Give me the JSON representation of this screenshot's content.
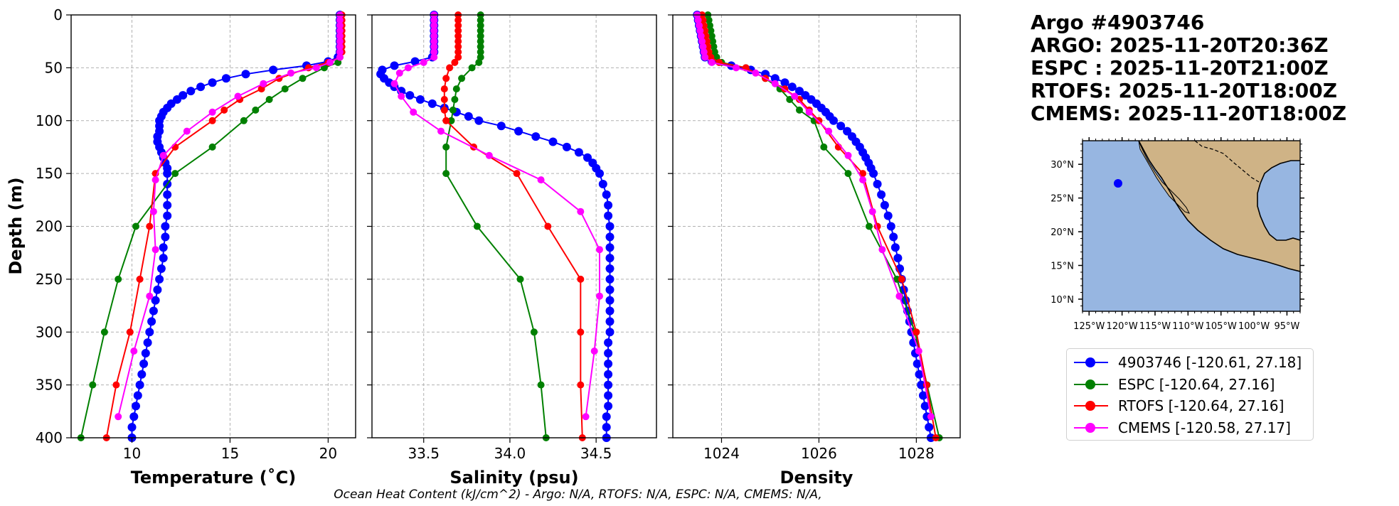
{
  "title_lines": [
    "Argo #4903746",
    "ARGO: 2025-11-20T20:36Z",
    "ESPC : 2025-11-20T21:00Z",
    "RTOFS: 2025-11-20T18:00Z",
    "CMEMS: 2025-11-20T18:00Z"
  ],
  "footnote": "Ocean Heat Content (kJ/cm^2) - Argo: N/A,  RTOFS: N/A,  ESPC: N/A,  CMEMS: N/A,",
  "legend": [
    {
      "label": "4903746 [-120.61, 27.18]",
      "color": "#0000ff"
    },
    {
      "label": "ESPC [-120.64, 27.16]",
      "color": "#008000"
    },
    {
      "label": "RTOFS [-120.64, 27.16]",
      "color": "#ff0000"
    },
    {
      "label": "CMEMS [-120.58, 27.17]",
      "color": "#ff00ff"
    }
  ],
  "chart_data": [
    {
      "type": "line",
      "name": "temperature",
      "xlabel": "Temperature (˚C)",
      "ylabel": "Depth (m)",
      "xlim": [
        6.9,
        21.4
      ],
      "ylim": [
        400,
        0
      ],
      "xticks": [
        10,
        15,
        20
      ],
      "xtick_labels": [
        "10",
        "15",
        "20"
      ],
      "yticks": [
        0,
        50,
        100,
        150,
        200,
        250,
        300,
        350,
        400
      ],
      "ytick_labels": [
        "0",
        "50",
        "100",
        "150",
        "200",
        "250",
        "300",
        "350",
        "400"
      ],
      "grid": true,
      "series": [
        {
          "name": "4903746",
          "color": "#0000ff",
          "markersize": 6,
          "depth": [
            0,
            5,
            10,
            15,
            20,
            25,
            30,
            35,
            40,
            44,
            48,
            52,
            56,
            60,
            64,
            68,
            72,
            76,
            80,
            84,
            88,
            92,
            96,
            100,
            105,
            110,
            115,
            120,
            125,
            130,
            135,
            140,
            145,
            150,
            160,
            170,
            180,
            190,
            200,
            210,
            220,
            230,
            240,
            250,
            260,
            270,
            280,
            290,
            300,
            310,
            320,
            330,
            340,
            350,
            360,
            370,
            380,
            390,
            400
          ],
          "values": [
            20.6,
            20.6,
            20.6,
            20.6,
            20.6,
            20.6,
            20.6,
            20.6,
            20.5,
            20.0,
            18.9,
            17.2,
            15.8,
            14.8,
            14.1,
            13.5,
            13.0,
            12.6,
            12.3,
            12.0,
            11.8,
            11.6,
            11.5,
            11.4,
            11.4,
            11.4,
            11.3,
            11.3,
            11.4,
            11.5,
            11.6,
            11.7,
            11.8,
            11.8,
            11.8,
            11.8,
            11.8,
            11.8,
            11.7,
            11.7,
            11.6,
            11.6,
            11.5,
            11.4,
            11.3,
            11.2,
            11.1,
            11.0,
            10.9,
            10.8,
            10.7,
            10.6,
            10.5,
            10.4,
            10.3,
            10.2,
            10.1,
            10.0,
            10.0
          ]
        },
        {
          "name": "ESPC",
          "color": "#008000",
          "markersize": 5,
          "depth": [
            0,
            5,
            10,
            15,
            20,
            25,
            30,
            35,
            40,
            45,
            50,
            60,
            70,
            80,
            90,
            100,
            125,
            150,
            200,
            250,
            300,
            350,
            400
          ],
          "values": [
            20.6,
            20.6,
            20.6,
            20.6,
            20.6,
            20.6,
            20.6,
            20.6,
            20.6,
            20.5,
            19.8,
            18.7,
            17.8,
            17.0,
            16.3,
            15.7,
            14.1,
            12.2,
            10.2,
            9.3,
            8.6,
            8.0,
            7.4
          ]
        },
        {
          "name": "RTOFS",
          "color": "#ff0000",
          "markersize": 5,
          "depth": [
            0,
            5,
            10,
            15,
            20,
            25,
            30,
            35,
            40,
            45,
            50,
            60,
            70,
            80,
            90,
            100,
            125,
            150,
            200,
            250,
            300,
            350,
            400
          ],
          "values": [
            20.7,
            20.7,
            20.7,
            20.7,
            20.7,
            20.7,
            20.7,
            20.7,
            20.6,
            20.0,
            19.0,
            17.5,
            16.6,
            15.5,
            14.7,
            14.1,
            12.2,
            11.2,
            10.9,
            10.4,
            9.9,
            9.2,
            8.7
          ]
        },
        {
          "name": "CMEMS",
          "color": "#ff00ff",
          "markersize": 5,
          "depth": [
            0,
            5,
            10,
            15,
            20,
            25,
            30,
            35,
            40,
            45,
            50,
            55,
            65,
            77,
            92,
            110,
            133,
            156,
            186,
            222,
            266,
            318,
            380
          ],
          "values": [
            20.6,
            20.6,
            20.6,
            20.6,
            20.6,
            20.6,
            20.6,
            20.6,
            20.6,
            20.1,
            19.4,
            18.1,
            16.7,
            15.4,
            14.1,
            12.8,
            11.6,
            11.2,
            11.1,
            11.2,
            10.9,
            10.1,
            9.3
          ]
        }
      ]
    },
    {
      "type": "line",
      "name": "salinity",
      "xlabel": "Salinity (psu)",
      "xlim": [
        33.2,
        34.85
      ],
      "ylim": [
        400,
        0
      ],
      "xticks": [
        33.5,
        34.0,
        34.5
      ],
      "xtick_labels": [
        "33.5",
        "34.0",
        "34.5"
      ],
      "grid": true,
      "series": [
        {
          "name": "4903746",
          "color": "#0000ff",
          "markersize": 6,
          "depth": [
            0,
            5,
            10,
            15,
            20,
            25,
            30,
            35,
            40,
            44,
            48,
            52,
            56,
            60,
            64,
            68,
            72,
            76,
            80,
            84,
            88,
            92,
            96,
            100,
            105,
            110,
            115,
            120,
            125,
            130,
            135,
            140,
            145,
            150,
            160,
            170,
            180,
            190,
            200,
            210,
            220,
            230,
            240,
            250,
            260,
            270,
            280,
            290,
            300,
            310,
            320,
            330,
            340,
            350,
            360,
            370,
            380,
            390,
            400
          ],
          "values": [
            33.56,
            33.56,
            33.56,
            33.56,
            33.56,
            33.56,
            33.56,
            33.56,
            33.55,
            33.45,
            33.33,
            33.26,
            33.25,
            33.27,
            33.3,
            33.33,
            33.37,
            33.42,
            33.48,
            33.55,
            33.62,
            33.69,
            33.76,
            33.82,
            33.95,
            34.05,
            34.15,
            34.25,
            34.33,
            34.4,
            34.45,
            34.48,
            34.5,
            34.52,
            34.54,
            34.56,
            34.57,
            34.57,
            34.58,
            34.58,
            34.58,
            34.58,
            34.58,
            34.58,
            34.58,
            34.58,
            34.58,
            34.58,
            34.58,
            34.57,
            34.57,
            34.57,
            34.57,
            34.57,
            34.57,
            34.57,
            34.56,
            34.56,
            34.56
          ]
        },
        {
          "name": "ESPC",
          "color": "#008000",
          "markersize": 5,
          "depth": [
            0,
            5,
            10,
            15,
            20,
            25,
            30,
            35,
            40,
            45,
            50,
            60,
            70,
            80,
            90,
            100,
            125,
            150,
            200,
            250,
            300,
            350,
            400
          ],
          "values": [
            33.83,
            33.83,
            33.83,
            33.83,
            33.83,
            33.83,
            33.83,
            33.83,
            33.83,
            33.82,
            33.78,
            33.72,
            33.69,
            33.68,
            33.67,
            33.66,
            33.63,
            33.63,
            33.81,
            34.06,
            34.14,
            34.18,
            34.21
          ]
        },
        {
          "name": "RTOFS",
          "color": "#ff0000",
          "markersize": 5,
          "depth": [
            0,
            5,
            10,
            15,
            20,
            25,
            30,
            35,
            40,
            45,
            50,
            60,
            70,
            80,
            90,
            100,
            125,
            150,
            200,
            250,
            300,
            350,
            400
          ],
          "values": [
            33.7,
            33.7,
            33.7,
            33.7,
            33.7,
            33.7,
            33.7,
            33.7,
            33.7,
            33.68,
            33.65,
            33.63,
            33.62,
            33.62,
            33.62,
            33.63,
            33.79,
            34.04,
            34.22,
            34.41,
            34.41,
            34.41,
            34.42
          ]
        },
        {
          "name": "CMEMS",
          "color": "#ff00ff",
          "markersize": 5,
          "depth": [
            0,
            5,
            10,
            15,
            20,
            25,
            30,
            35,
            40,
            45,
            50,
            55,
            65,
            77,
            92,
            110,
            133,
            156,
            186,
            222,
            266,
            318,
            380
          ],
          "values": [
            33.56,
            33.56,
            33.56,
            33.56,
            33.56,
            33.56,
            33.56,
            33.56,
            33.56,
            33.5,
            33.41,
            33.36,
            33.33,
            33.37,
            33.44,
            33.6,
            33.88,
            34.18,
            34.41,
            34.52,
            34.52,
            34.49,
            34.44
          ]
        }
      ]
    },
    {
      "type": "line",
      "name": "density",
      "xlabel": "Density",
      "xlim": [
        1023.0,
        1028.9
      ],
      "ylim": [
        400,
        0
      ],
      "xticks": [
        1024,
        1026,
        1028
      ],
      "xtick_labels": [
        "1024",
        "1026",
        "1028"
      ],
      "grid": true,
      "series": [
        {
          "name": "4903746",
          "color": "#0000ff",
          "markersize": 6,
          "depth": [
            0,
            5,
            10,
            15,
            20,
            25,
            30,
            35,
            40,
            44,
            48,
            52,
            56,
            60,
            64,
            68,
            72,
            76,
            80,
            84,
            88,
            92,
            96,
            100,
            105,
            110,
            115,
            120,
            125,
            130,
            135,
            140,
            145,
            150,
            160,
            170,
            180,
            190,
            200,
            210,
            220,
            230,
            240,
            250,
            260,
            270,
            280,
            290,
            300,
            310,
            320,
            330,
            340,
            350,
            360,
            370,
            380,
            390,
            400
          ],
          "values": [
            1023.5,
            1023.52,
            1023.54,
            1023.56,
            1023.58,
            1023.6,
            1023.62,
            1023.64,
            1023.66,
            1023.8,
            1024.2,
            1024.6,
            1024.9,
            1025.1,
            1025.3,
            1025.45,
            1025.6,
            1025.72,
            1025.84,
            1025.95,
            1026.05,
            1026.14,
            1026.22,
            1026.3,
            1026.45,
            1026.58,
            1026.68,
            1026.76,
            1026.84,
            1026.9,
            1026.96,
            1027.02,
            1027.07,
            1027.12,
            1027.2,
            1027.28,
            1027.35,
            1027.42,
            1027.48,
            1027.53,
            1027.57,
            1027.62,
            1027.66,
            1027.7,
            1027.74,
            1027.78,
            1027.82,
            1027.86,
            1027.9,
            1027.94,
            1027.98,
            1028.02,
            1028.06,
            1028.1,
            1028.14,
            1028.18,
            1028.22,
            1028.26,
            1028.3
          ]
        },
        {
          "name": "ESPC",
          "color": "#008000",
          "markersize": 5,
          "depth": [
            0,
            5,
            10,
            15,
            20,
            25,
            30,
            35,
            40,
            45,
            50,
            60,
            70,
            80,
            90,
            100,
            125,
            150,
            200,
            250,
            300,
            350,
            400
          ],
          "values": [
            1023.72,
            1023.74,
            1023.76,
            1023.78,
            1023.8,
            1023.82,
            1023.84,
            1023.86,
            1023.9,
            1024.0,
            1024.5,
            1024.9,
            1025.2,
            1025.4,
            1025.6,
            1025.9,
            1026.1,
            1026.6,
            1027.03,
            1027.6,
            1027.97,
            1028.22,
            1028.47
          ]
        },
        {
          "name": "RTOFS",
          "color": "#ff0000",
          "markersize": 5,
          "depth": [
            0,
            5,
            10,
            15,
            20,
            25,
            30,
            35,
            40,
            45,
            50,
            60,
            70,
            80,
            90,
            100,
            125,
            150,
            200,
            250,
            300,
            350,
            400
          ],
          "values": [
            1023.6,
            1023.62,
            1023.64,
            1023.66,
            1023.68,
            1023.7,
            1023.72,
            1023.74,
            1023.78,
            1023.95,
            1024.5,
            1024.9,
            1025.3,
            1025.6,
            1025.8,
            1026.0,
            1026.4,
            1026.9,
            1027.2,
            1027.7,
            1028.0,
            1028.21,
            1028.4
          ]
        },
        {
          "name": "CMEMS",
          "color": "#ff00ff",
          "markersize": 5,
          "depth": [
            0,
            5,
            10,
            15,
            20,
            25,
            30,
            35,
            40,
            45,
            50,
            55,
            65,
            77,
            92,
            110,
            133,
            156,
            186,
            222,
            266,
            318,
            380
          ],
          "values": [
            1023.5,
            1023.52,
            1023.54,
            1023.56,
            1023.58,
            1023.6,
            1023.62,
            1023.64,
            1023.66,
            1023.8,
            1024.3,
            1024.7,
            1025.1,
            1025.5,
            1025.8,
            1026.2,
            1026.6,
            1026.9,
            1027.1,
            1027.3,
            1027.65,
            1028.05,
            1028.3
          ]
        }
      ]
    }
  ],
  "map": {
    "lon_labels": [
      "125°W",
      "120°W",
      "115°W",
      "110°W",
      "105°W",
      "100°W",
      "95°W"
    ],
    "lon_values": [
      -125,
      -120,
      -115,
      -110,
      -105,
      -100,
      -95
    ],
    "lat_labels": [
      "30°N",
      "25°N",
      "20°N",
      "15°N",
      "10°N"
    ],
    "lat_values": [
      30,
      25,
      20,
      15,
      10
    ],
    "lon_range": [
      -126,
      -93
    ],
    "lat_range": [
      8.2,
      33.5
    ],
    "float_lon": -120.61,
    "float_lat": 27.18,
    "ocean_color": "#97b6e1",
    "land_color": "#cfb386",
    "marker_color": "#0000ff"
  }
}
